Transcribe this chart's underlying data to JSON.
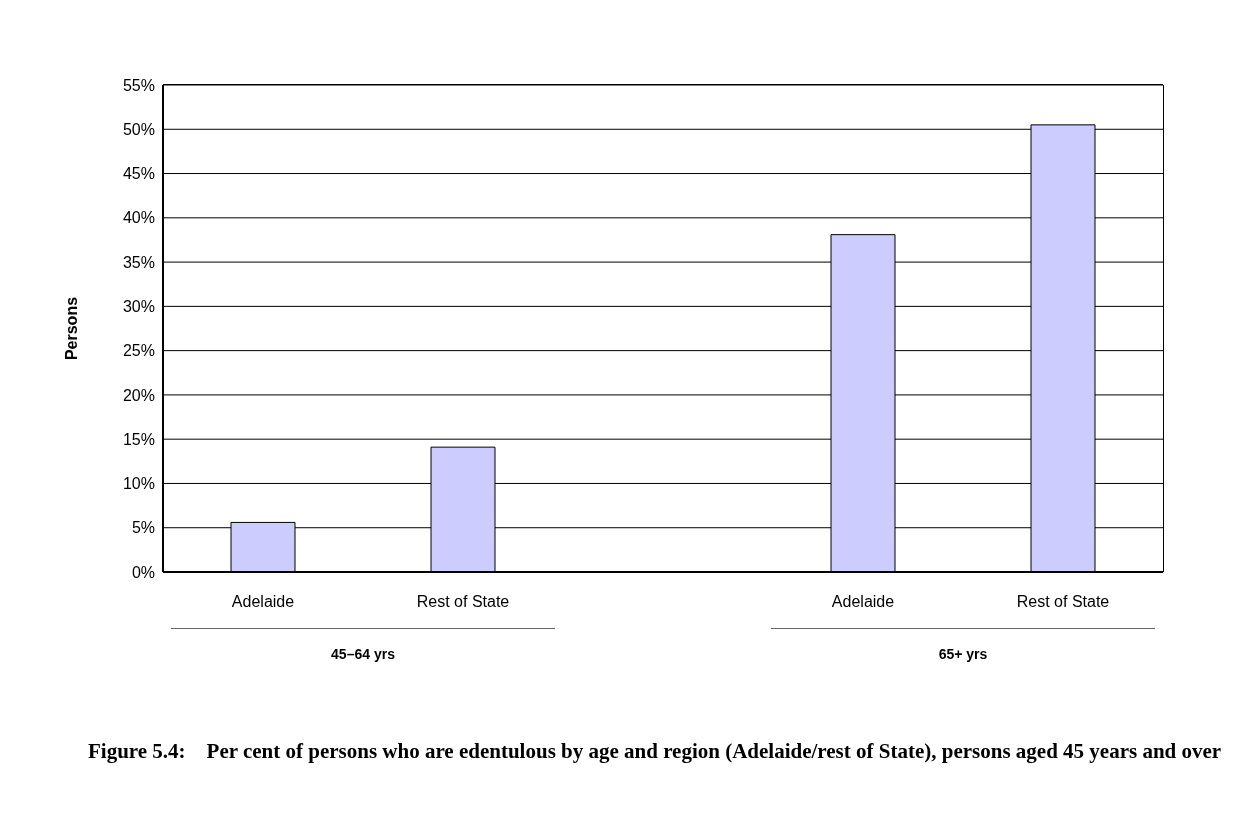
{
  "chart_data": {
    "type": "bar",
    "title": "Figure 5.4:    Per cent of persons who are edentulous by age and region (Adelaide/rest of State), persons aged 45 years and over",
    "ylabel": "Persons",
    "categories": [
      "Adelaide",
      "Rest of State",
      null,
      "Adelaide",
      "Rest of State"
    ],
    "values": [
      5.6,
      14.1,
      null,
      38.1,
      50.5
    ],
    "color": "#ccccff",
    "ylim": [
      0,
      55
    ],
    "yticks": [
      {
        "value": 0,
        "label": "0%"
      },
      {
        "value": 5,
        "label": "5%"
      },
      {
        "value": 10,
        "label": "10%"
      },
      {
        "value": 15,
        "label": "15%"
      },
      {
        "value": 20,
        "label": "20%"
      },
      {
        "value": 25,
        "label": "25%"
      },
      {
        "value": 30,
        "label": "30%"
      },
      {
        "value": 35,
        "label": "35%"
      },
      {
        "value": 40,
        "label": "40%"
      },
      {
        "value": 45,
        "label": "45%"
      },
      {
        "value": 50,
        "label": "50%"
      },
      {
        "value": 55,
        "label": "55%"
      }
    ],
    "grid": "y",
    "legend": false,
    "annotations": [
      "45–64 yrs",
      "65+ yrs"
    ]
  }
}
